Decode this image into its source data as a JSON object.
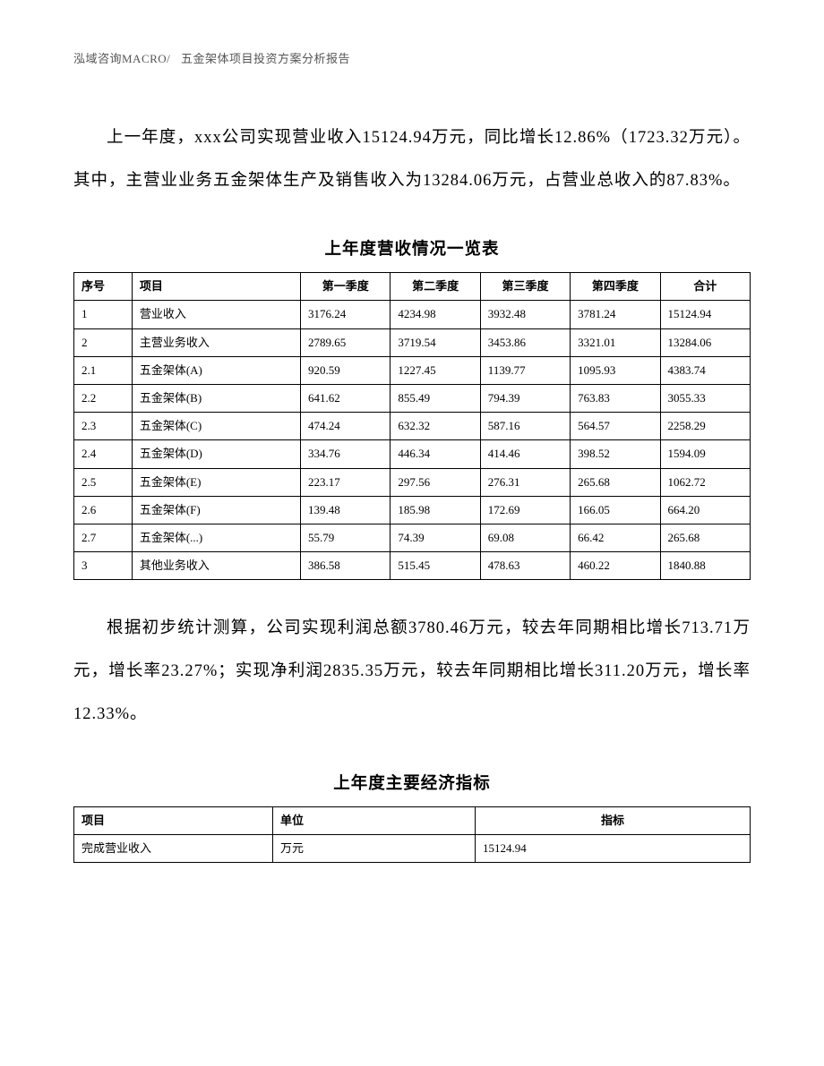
{
  "header": {
    "company": "泓域咨询MACRO/",
    "doc_title": "五金架体项目投资方案分析报告"
  },
  "paragraph1": "上一年度，xxx公司实现营业收入15124.94万元，同比增长12.86%（1723.32万元）。其中，主营业业务五金架体生产及销售收入为13284.06万元，占营业总收入的87.83%。",
  "revenue_table": {
    "title": "上年度营收情况一览表",
    "columns": [
      "序号",
      "项目",
      "第一季度",
      "第二季度",
      "第三季度",
      "第四季度",
      "合计"
    ],
    "rows": [
      [
        "1",
        "营业收入",
        "3176.24",
        "4234.98",
        "3932.48",
        "3781.24",
        "15124.94"
      ],
      [
        "2",
        "主营业务收入",
        "2789.65",
        "3719.54",
        "3453.86",
        "3321.01",
        "13284.06"
      ],
      [
        "2.1",
        "五金架体(A)",
        "920.59",
        "1227.45",
        "1139.77",
        "1095.93",
        "4383.74"
      ],
      [
        "2.2",
        "五金架体(B)",
        "641.62",
        "855.49",
        "794.39",
        "763.83",
        "3055.33"
      ],
      [
        "2.3",
        "五金架体(C)",
        "474.24",
        "632.32",
        "587.16",
        "564.57",
        "2258.29"
      ],
      [
        "2.4",
        "五金架体(D)",
        "334.76",
        "446.34",
        "414.46",
        "398.52",
        "1594.09"
      ],
      [
        "2.5",
        "五金架体(E)",
        "223.17",
        "297.56",
        "276.31",
        "265.68",
        "1062.72"
      ],
      [
        "2.6",
        "五金架体(F)",
        "139.48",
        "185.98",
        "172.69",
        "166.05",
        "664.20"
      ],
      [
        "2.7",
        "五金架体(...)",
        "55.79",
        "74.39",
        "69.08",
        "66.42",
        "265.68"
      ],
      [
        "3",
        "其他业务收入",
        "386.58",
        "515.45",
        "478.63",
        "460.22",
        "1840.88"
      ]
    ]
  },
  "paragraph2": "根据初步统计测算，公司实现利润总额3780.46万元，较去年同期相比增长713.71万元，增长率23.27%；实现净利润2835.35万元，较去年同期相比增长311.20万元，增长率12.33%。",
  "econ_table": {
    "title": "上年度主要经济指标",
    "columns": [
      "项目",
      "单位",
      "指标"
    ],
    "rows": [
      [
        "完成营业收入",
        "万元",
        "15124.94"
      ]
    ]
  }
}
